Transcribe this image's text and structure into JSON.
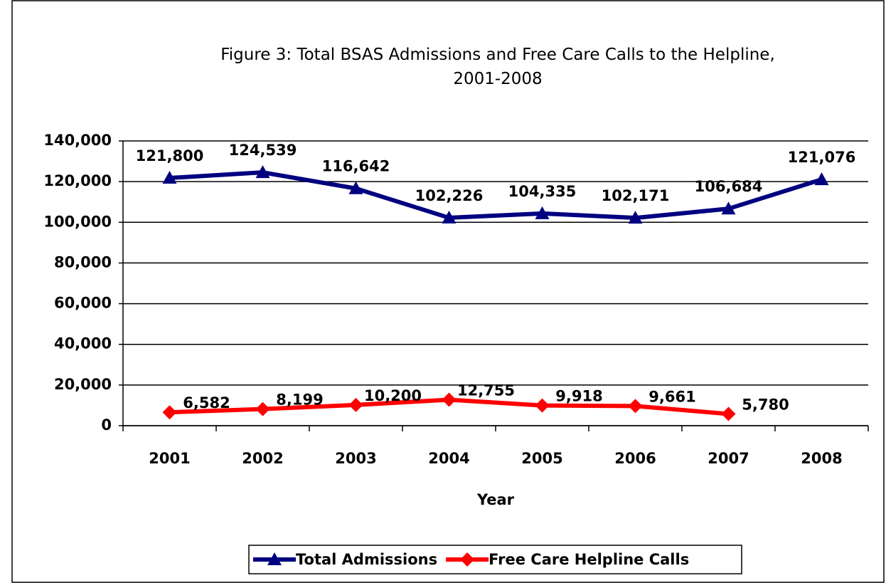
{
  "chart_data": {
    "type": "line",
    "title": "Figure 3: Total BSAS Admissions and Free Care Calls to the Helpline, 2001-2008",
    "x_label": "Year",
    "categories": [
      "2001",
      "2002",
      "2003",
      "2004",
      "2005",
      "2006",
      "2007",
      "2008"
    ],
    "series": [
      {
        "name": "Total Admissions",
        "color": "#000080",
        "marker": "triangle",
        "values": [
          121800,
          124539,
          116642,
          102226,
          104335,
          102171,
          106684,
          121076
        ],
        "value_labels": [
          "121,800",
          "124,539",
          "116,642",
          "102,226",
          "104,335",
          "102,171",
          "106,684",
          "121,076"
        ]
      },
      {
        "name": "Free Care Helpline Calls",
        "color": "#ff0000",
        "marker": "diamond",
        "values": [
          6582,
          8199,
          10200,
          12755,
          9918,
          9661,
          5780,
          null
        ],
        "value_labels": [
          "6,582",
          "8,199",
          "10,200",
          "12,755",
          "9,918",
          "9,661",
          "5,780",
          null
        ]
      }
    ],
    "ylim": [
      0,
      140000
    ],
    "yticks": [
      0,
      {
        "value": 20000,
        "label": "20,000"
      },
      {
        "value": 40000,
        "label": "40,000"
      },
      {
        "value": 60000,
        "label": "60,000"
      },
      {
        "value": 80000,
        "label": "80,000"
      },
      {
        "value": 100000,
        "label": "100,000"
      },
      {
        "value": 120000,
        "label": "120,000"
      },
      {
        "value": 140000,
        "label": "140,000"
      }
    ],
    "grid": true,
    "legend": "bottom"
  }
}
